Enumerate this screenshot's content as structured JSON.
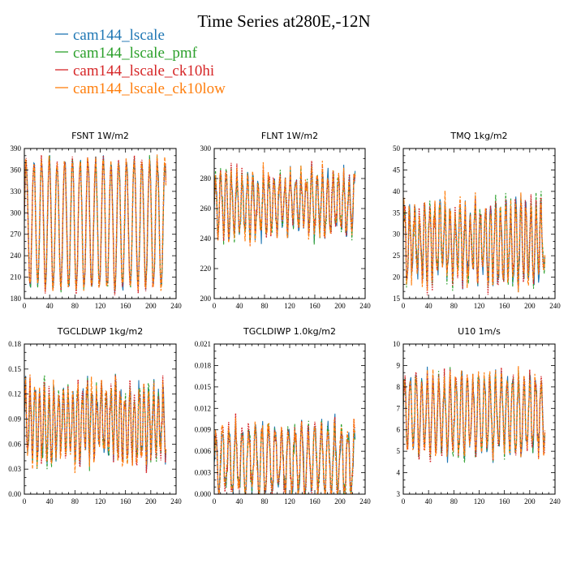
{
  "figure": {
    "title": "Time Series at280E,-12N",
    "legend": [
      {
        "name": "cam144_lscale",
        "color": "#1f77b4"
      },
      {
        "name": "cam144_lscale_pmf",
        "color": "#2ca02c"
      },
      {
        "name": "cam144_lscale_ck10hi",
        "color": "#d62728"
      },
      {
        "name": "cam144_lscale_ck10low",
        "color": "#ff7f0e"
      }
    ]
  },
  "chart_data": [
    {
      "type": "line",
      "title": "FSNT   1W/m2",
      "xlim": [
        0,
        240
      ],
      "ylim": [
        180,
        390
      ],
      "xticks": [
        0,
        40,
        80,
        120,
        160,
        200,
        240
      ],
      "yticks": [
        180,
        210,
        240,
        270,
        300,
        330,
        360,
        390
      ],
      "ytick_labels": [
        "180",
        "210",
        "240",
        "270",
        "300",
        "330",
        "360",
        "390"
      ],
      "series_model": {
        "n": 225,
        "period": 12.2,
        "low": 195,
        "high": 372,
        "noise": 10
      }
    },
    {
      "type": "line",
      "title": "FLNT   1W/m2",
      "xlim": [
        0,
        240
      ],
      "ylim": [
        200,
        300
      ],
      "xticks": [
        0,
        40,
        80,
        120,
        160,
        200,
        240
      ],
      "yticks": [
        200,
        220,
        240,
        260,
        280,
        300
      ],
      "ytick_labels": [
        "200",
        "220",
        "240",
        "260",
        "280",
        "300"
      ],
      "series_model": {
        "n": 225,
        "period": 8.5,
        "low": 244,
        "high": 282,
        "noise": 9
      }
    },
    {
      "type": "line",
      "title": "TMQ   1kg/m2",
      "xlim": [
        0,
        240
      ],
      "ylim": [
        15,
        50
      ],
      "xticks": [
        0,
        40,
        80,
        120,
        160,
        200,
        240
      ],
      "yticks": [
        15,
        20,
        25,
        30,
        35,
        40,
        45,
        50
      ],
      "ytick_labels": [
        "15",
        "20",
        "25",
        "30",
        "35",
        "40",
        "45",
        "50"
      ],
      "series_model": {
        "n": 225,
        "period": 8.0,
        "low": 20,
        "high": 36,
        "noise": 4
      }
    },
    {
      "type": "line",
      "title": "TGCLDLWP   1kg/m2",
      "xlim": [
        0,
        240
      ],
      "ylim": [
        0,
        0.18
      ],
      "xticks": [
        0,
        40,
        80,
        120,
        160,
        200,
        240
      ],
      "yticks": [
        0,
        0.03,
        0.06,
        0.09,
        0.12,
        0.15,
        0.18
      ],
      "ytick_labels": [
        "0.00",
        "0.03",
        "0.06",
        "0.09",
        "0.12",
        "0.15",
        "0.18"
      ],
      "series_model": {
        "n": 225,
        "period": 7.5,
        "low": 0.045,
        "high": 0.125,
        "noise": 0.02
      }
    },
    {
      "type": "line",
      "title": "TGCLDIWP   1.0kg/m2",
      "xlim": [
        0,
        240
      ],
      "ylim": [
        0,
        0.021
      ],
      "xticks": [
        0,
        40,
        80,
        120,
        160,
        200,
        240
      ],
      "yticks": [
        0,
        0.003,
        0.006,
        0.009,
        0.012,
        0.015,
        0.018,
        0.021
      ],
      "ytick_labels": [
        "0.000",
        "0.003",
        "0.006",
        "0.009",
        "0.012",
        "0.015",
        "0.018",
        "0.021"
      ],
      "series_model": {
        "n": 225,
        "period": 10.5,
        "low": 0.0002,
        "high": 0.009,
        "noise": 0.002
      }
    },
    {
      "type": "line",
      "title": "U10   1m/s",
      "xlim": [
        0,
        240
      ],
      "ylim": [
        3,
        10
      ],
      "xticks": [
        0,
        40,
        80,
        120,
        160,
        200,
        240
      ],
      "yticks": [
        3,
        4,
        5,
        6,
        7,
        8,
        9,
        10
      ],
      "ytick_labels": [
        "3",
        "4",
        "5",
        "6",
        "7",
        "8",
        "9",
        "10"
      ],
      "series_model": {
        "n": 225,
        "period": 9.0,
        "low": 5.0,
        "high": 8.4,
        "noise": 0.6
      }
    }
  ]
}
